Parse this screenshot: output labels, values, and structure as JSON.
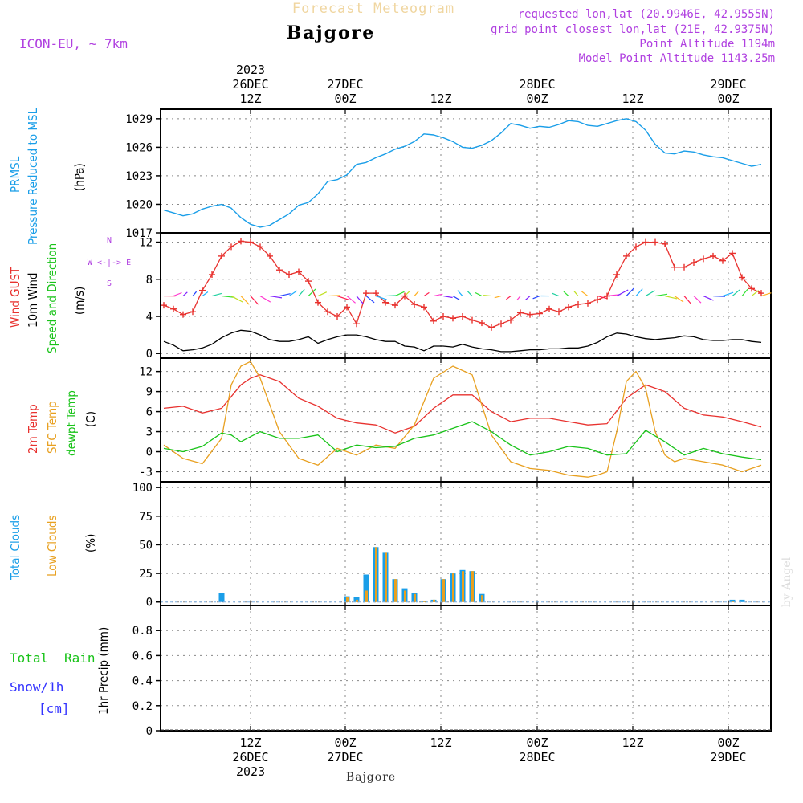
{
  "header": {
    "title": "Forecast Meteogram",
    "location": "Bajgore",
    "model": "ICON-EU, ~ 7km",
    "requested": "requested lon,lat (20.9946E, 42.9555N)",
    "gridpoint": "grid point closest lon,lat (21E, 42.9375N)",
    "point_alt": "Point Altitude 1194m",
    "model_alt": "Model Point Altitude 1143.25m",
    "footer_location": "Bajgore",
    "watermark": "by Angel"
  },
  "time_axis": {
    "top": [
      {
        "line1": "2023",
        "line2": "26DEC",
        "line3": "12Z"
      },
      {
        "line1": "",
        "line2": "27DEC",
        "line3": "00Z"
      },
      {
        "line1": "",
        "line2": "",
        "line3": "12Z"
      },
      {
        "line1": "",
        "line2": "28DEC",
        "line3": "00Z"
      },
      {
        "line1": "",
        "line2": "",
        "line3": "12Z"
      },
      {
        "line1": "",
        "line2": "29DEC",
        "line3": "00Z"
      }
    ],
    "bottom": [
      {
        "line1": "12Z",
        "line2": "26DEC",
        "line3": "2023"
      },
      {
        "line1": "00Z",
        "line2": "27DEC",
        "line3": ""
      },
      {
        "line1": "12Z",
        "line2": "",
        "line3": ""
      },
      {
        "line1": "00Z",
        "line2": "28DEC",
        "line3": ""
      },
      {
        "line1": "12Z",
        "line2": "",
        "line3": ""
      },
      {
        "line1": "00Z",
        "line2": "29DEC",
        "line3": ""
      }
    ]
  },
  "colors": {
    "pressure": "#1a9ee8",
    "gust": "#e8322f",
    "wind": "#000000",
    "temp": "#e8322f",
    "sfc": "#e8a020",
    "dew": "#19c319",
    "total_cloud": "#1a9ee8",
    "low_cloud": "#e8a020",
    "rain": "#19c319",
    "snow": "#3232ff",
    "meta": "#b040e0"
  },
  "panel_labels": {
    "pressure": {
      "a": "PRMSL",
      "b": "Pressure Reduced to MSL",
      "unit": "(hPa)"
    },
    "wind": {
      "a": "Wind GUST",
      "b": "10m Wind",
      "c": "Speed and Direction",
      "unit": "(m/s)",
      "compass_n": "N",
      "compass_s": "S",
      "compass_we": "W <-|-> E"
    },
    "temp": {
      "a": "2m Temp",
      "b": "SFC Temp",
      "c": "dewpt Temp",
      "unit": "(C)"
    },
    "cloud": {
      "a": "Total Clouds",
      "b": "Low Clouds",
      "unit": "(%)"
    },
    "precip": {
      "a": "Total",
      "a2": "Rain",
      "b": "Snow/1h",
      "c": "[cm]",
      "unit": "1hr Precip (mm)"
    }
  },
  "chart_data": [
    {
      "type": "line",
      "ylabel": "(hPa)",
      "ylim": [
        1017,
        1030
      ],
      "yticks": [
        1017,
        1020,
        1023,
        1026,
        1029
      ],
      "grid": true,
      "series": [
        {
          "name": "PRMSL",
          "x": [
            0,
            1,
            2,
            3,
            4,
            5,
            6,
            7,
            8,
            9,
            10,
            11,
            12,
            13,
            14,
            15,
            16,
            17,
            18,
            19,
            20,
            21,
            22,
            23,
            24,
            25,
            26,
            27,
            28,
            29,
            30,
            31,
            32,
            33,
            34,
            35,
            36,
            37,
            38,
            39,
            40,
            41,
            42,
            43,
            44,
            45,
            46,
            47,
            48,
            49,
            50,
            51,
            52,
            53,
            54,
            55,
            56,
            57,
            58,
            59,
            60,
            61,
            62
          ],
          "values": [
            1019.4,
            1019.1,
            1018.8,
            1019.0,
            1019.5,
            1019.8,
            1020.0,
            1019.6,
            1018.6,
            1017.9,
            1017.6,
            1017.8,
            1018.4,
            1019.0,
            1019.9,
            1020.2,
            1021.1,
            1022.4,
            1022.6,
            1023.1,
            1024.2,
            1024.4,
            1024.9,
            1025.3,
            1025.8,
            1026.1,
            1026.6,
            1027.4,
            1027.3,
            1027.0,
            1026.6,
            1026.0,
            1025.9,
            1026.2,
            1026.7,
            1027.5,
            1028.5,
            1028.3,
            1028.0,
            1028.2,
            1028.1,
            1028.4,
            1028.8,
            1028.7,
            1028.3,
            1028.2,
            1028.5,
            1028.8,
            1029.0,
            1028.7,
            1027.8,
            1026.3,
            1025.4,
            1025.3,
            1025.6,
            1025.5,
            1025.2,
            1025.0,
            1024.9,
            1024.6,
            1024.3,
            1024.0,
            1024.2
          ]
        }
      ]
    },
    {
      "type": "line",
      "ylabel": "(m/s)",
      "ylim": [
        -0.5,
        13
      ],
      "yticks": [
        0,
        4,
        8,
        12
      ],
      "grid": true,
      "series": [
        {
          "name": "Wind GUST",
          "x": [
            0,
            1,
            2,
            3,
            4,
            5,
            6,
            7,
            8,
            9,
            10,
            11,
            12,
            13,
            14,
            15,
            16,
            17,
            18,
            19,
            20,
            21,
            22,
            23,
            24,
            25,
            26,
            27,
            28,
            29,
            30,
            31,
            32,
            33,
            34,
            35,
            36,
            37,
            38,
            39,
            40,
            41,
            42,
            43,
            44,
            45,
            46,
            47,
            48,
            49,
            50,
            51,
            52,
            53,
            54,
            55,
            56,
            57,
            58,
            59,
            60,
            61,
            62
          ],
          "values": [
            5.2,
            4.8,
            4.2,
            4.5,
            6.8,
            8.5,
            10.5,
            11.5,
            12.1,
            12.0,
            11.5,
            10.5,
            9.0,
            8.5,
            8.8,
            7.8,
            5.5,
            4.5,
            4.0,
            5.0,
            3.2,
            6.5,
            6.5,
            5.5,
            5.2,
            6.2,
            5.3,
            5.0,
            3.5,
            4.0,
            3.8,
            4.0,
            3.6,
            3.3,
            2.8,
            3.2,
            3.6,
            4.4,
            4.2,
            4.3,
            4.8,
            4.5,
            5.0,
            5.3,
            5.4,
            5.8,
            6.2,
            8.5,
            10.5,
            11.5,
            12.0,
            12.0,
            11.8,
            9.3,
            9.3,
            9.8,
            10.2,
            10.5,
            10.0,
            10.8,
            8.2,
            7.0,
            6.5
          ]
        },
        {
          "name": "10m Wind",
          "x": [
            0,
            1,
            2,
            3,
            4,
            5,
            6,
            7,
            8,
            9,
            10,
            11,
            12,
            13,
            14,
            15,
            16,
            17,
            18,
            19,
            20,
            21,
            22,
            23,
            24,
            25,
            26,
            27,
            28,
            29,
            30,
            31,
            32,
            33,
            34,
            35,
            36,
            37,
            38,
            39,
            40,
            41,
            42,
            43,
            44,
            45,
            46,
            47,
            48,
            49,
            50,
            51,
            52,
            53,
            54,
            55,
            56,
            57,
            58,
            59,
            60,
            61,
            62
          ],
          "values": [
            1.3,
            0.9,
            0.3,
            0.4,
            0.6,
            1.0,
            1.7,
            2.2,
            2.5,
            2.4,
            2.0,
            1.5,
            1.3,
            1.3,
            1.5,
            1.8,
            1.1,
            1.5,
            1.8,
            2.0,
            2.0,
            1.8,
            1.5,
            1.3,
            1.3,
            0.8,
            0.7,
            0.3,
            0.8,
            0.8,
            0.7,
            1.0,
            0.7,
            0.5,
            0.4,
            0.2,
            0.2,
            0.3,
            0.4,
            0.4,
            0.5,
            0.5,
            0.6,
            0.6,
            0.8,
            1.2,
            1.8,
            2.2,
            2.1,
            1.8,
            1.6,
            1.5,
            1.6,
            1.7,
            1.9,
            1.8,
            1.5,
            1.4,
            1.4,
            1.5,
            1.5,
            1.3,
            1.2
          ]
        }
      ]
    },
    {
      "type": "line",
      "ylabel": "(C)",
      "ylim": [
        -4.5,
        14
      ],
      "yticks": [
        -3,
        0,
        3,
        6,
        9,
        12
      ],
      "grid": true,
      "series": [
        {
          "name": "2m Temp",
          "x": [
            0,
            2,
            4,
            6,
            8,
            9,
            10,
            12,
            14,
            16,
            18,
            20,
            22,
            24,
            26,
            28,
            30,
            32,
            34,
            36,
            38,
            40,
            42,
            44,
            46,
            48,
            50,
            52,
            54,
            56,
            58,
            60,
            62
          ],
          "values": [
            6.5,
            6.8,
            5.8,
            6.5,
            10.0,
            11.0,
            11.5,
            10.5,
            8.0,
            6.8,
            5.0,
            4.3,
            4.0,
            2.8,
            3.8,
            6.5,
            8.5,
            8.5,
            6.0,
            4.5,
            5.0,
            5.0,
            4.5,
            4.0,
            4.2,
            8.0,
            10.0,
            9.0,
            6.5,
            5.5,
            5.2,
            4.5,
            3.7
          ]
        },
        {
          "name": "SFC Temp",
          "x": [
            0,
            2,
            4,
            6,
            7,
            8,
            9,
            10,
            12,
            14,
            16,
            18,
            20,
            22,
            24,
            26,
            28,
            30,
            32,
            34,
            36,
            38,
            40,
            42,
            44,
            45,
            46,
            47,
            48,
            49,
            50,
            51,
            52,
            53,
            54,
            56,
            58,
            60,
            62
          ],
          "values": [
            1.0,
            -1.0,
            -1.8,
            2.0,
            10.0,
            12.8,
            13.5,
            11.0,
            3.0,
            -1.0,
            -2.0,
            0.5,
            -0.5,
            1.0,
            0.5,
            4.0,
            11.0,
            12.8,
            11.5,
            2.5,
            -1.5,
            -2.5,
            -2.8,
            -3.5,
            -3.8,
            -3.5,
            -3.0,
            3.0,
            10.5,
            12.0,
            9.5,
            3.0,
            -0.5,
            -1.5,
            -1.0,
            -1.5,
            -2.0,
            -3.0,
            -2.0
          ]
        },
        {
          "name": "dewpt Temp",
          "x": [
            0,
            2,
            4,
            6,
            7,
            8,
            10,
            12,
            14,
            16,
            18,
            20,
            22,
            24,
            26,
            28,
            30,
            32,
            34,
            36,
            38,
            40,
            42,
            44,
            46,
            48,
            50,
            52,
            54,
            56,
            58,
            60,
            62
          ],
          "values": [
            0.5,
            0.0,
            0.8,
            2.8,
            2.5,
            1.5,
            3.0,
            2.0,
            2.0,
            2.5,
            0.0,
            1.0,
            0.6,
            0.8,
            2.0,
            2.5,
            3.5,
            4.5,
            3.0,
            1.0,
            -0.5,
            0.0,
            0.8,
            0.5,
            -0.5,
            -0.3,
            3.2,
            1.5,
            -0.5,
            0.5,
            -0.3,
            -0.8,
            -1.2
          ]
        }
      ]
    },
    {
      "type": "bar",
      "ylabel": "(%)",
      "ylim": [
        -3,
        105
      ],
      "yticks": [
        0,
        25,
        50,
        75,
        100
      ],
      "grid": true,
      "series": [
        {
          "name": "Total Clouds",
          "x": [
            6,
            19,
            20,
            21,
            22,
            23,
            24,
            25,
            26,
            27,
            28,
            29,
            30,
            31,
            32,
            33,
            59,
            60
          ],
          "values": [
            8,
            5,
            4,
            24,
            48,
            43,
            20,
            12,
            8,
            1,
            2,
            20,
            25,
            28,
            27,
            7,
            2,
            2
          ]
        },
        {
          "name": "Low Clouds",
          "x": [
            19,
            20,
            21,
            22,
            23,
            24,
            25,
            26,
            27,
            28,
            29,
            30,
            31,
            32,
            33,
            59
          ],
          "values": [
            4,
            2,
            10,
            48,
            43,
            20,
            10,
            7,
            1,
            2,
            20,
            25,
            27,
            27,
            6,
            1
          ]
        }
      ]
    },
    {
      "type": "bar",
      "ylabel": "1hr Precip (mm)",
      "ylim": [
        0,
        1.0
      ],
      "yticks": [
        0,
        0.2,
        0.4,
        0.6,
        0.8
      ],
      "grid": true,
      "series": [
        {
          "name": "Total Rain",
          "x": [],
          "values": []
        },
        {
          "name": "Snow/1h",
          "x": [],
          "values": []
        }
      ]
    }
  ]
}
